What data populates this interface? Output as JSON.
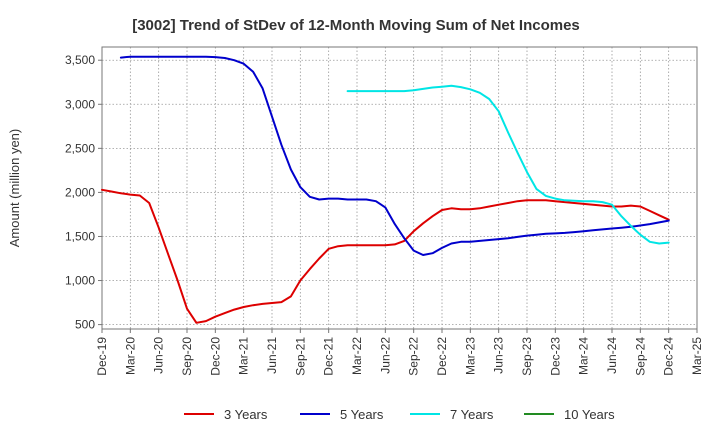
{
  "chart_data": {
    "type": "line",
    "title": "[3002]  Trend of StDev of 12-Month Moving Sum of Net Incomes",
    "xlabel": "",
    "ylabel": "Amount (million yen)",
    "ylim": [
      450,
      3650
    ],
    "yticks": [
      500,
      1000,
      1500,
      2000,
      2500,
      3000,
      3500
    ],
    "ytick_labels": [
      "500",
      "1,000",
      "1,500",
      "2,000",
      "2,500",
      "3,000",
      "3,500"
    ],
    "x_range": [
      "2019-12",
      "2025-03"
    ],
    "xticks": [
      "2019-12",
      "2020-03",
      "2020-06",
      "2020-09",
      "2020-12",
      "2021-03",
      "2021-06",
      "2021-09",
      "2021-12",
      "2022-03",
      "2022-06",
      "2022-09",
      "2022-12",
      "2023-03",
      "2023-06",
      "2023-09",
      "2023-12",
      "2024-03",
      "2024-06",
      "2024-09",
      "2024-12",
      "2025-03"
    ],
    "xtick_labels": [
      "Dec-19",
      "Mar-20",
      "Jun-20",
      "Sep-20",
      "Dec-20",
      "Mar-21",
      "Jun-21",
      "Sep-21",
      "Dec-21",
      "Mar-22",
      "Jun-22",
      "Sep-22",
      "Dec-22",
      "Mar-23",
      "Jun-23",
      "Sep-23",
      "Dec-23",
      "Mar-24",
      "Jun-24",
      "Sep-24",
      "Dec-24",
      "Mar-25"
    ],
    "grid": true,
    "legend_position": "bottom",
    "series": [
      {
        "name": "3 Years",
        "color": "#dd0000",
        "points": [
          [
            "2019-12",
            2030
          ],
          [
            "2020-01",
            2010
          ],
          [
            "2020-02",
            1990
          ],
          [
            "2020-03",
            1975
          ],
          [
            "2020-04",
            1965
          ],
          [
            "2020-05",
            1880
          ],
          [
            "2020-06",
            1600
          ],
          [
            "2020-07",
            1300
          ],
          [
            "2020-08",
            1000
          ],
          [
            "2020-09",
            680
          ],
          [
            "2020-10",
            520
          ],
          [
            "2020-11",
            540
          ],
          [
            "2020-12",
            590
          ],
          [
            "2021-01",
            630
          ],
          [
            "2021-02",
            670
          ],
          [
            "2021-03",
            700
          ],
          [
            "2021-04",
            720
          ],
          [
            "2021-05",
            735
          ],
          [
            "2021-06",
            745
          ],
          [
            "2021-07",
            755
          ],
          [
            "2021-08",
            820
          ],
          [
            "2021-09",
            1000
          ],
          [
            "2021-10",
            1130
          ],
          [
            "2021-11",
            1250
          ],
          [
            "2021-12",
            1360
          ],
          [
            "2022-01",
            1390
          ],
          [
            "2022-02",
            1400
          ],
          [
            "2022-03",
            1400
          ],
          [
            "2022-04",
            1400
          ],
          [
            "2022-05",
            1400
          ],
          [
            "2022-06",
            1400
          ],
          [
            "2022-07",
            1410
          ],
          [
            "2022-08",
            1450
          ],
          [
            "2022-09",
            1560
          ],
          [
            "2022-10",
            1650
          ],
          [
            "2022-11",
            1730
          ],
          [
            "2022-12",
            1800
          ],
          [
            "2023-01",
            1820
          ],
          [
            "2023-02",
            1810
          ],
          [
            "2023-03",
            1810
          ],
          [
            "2023-04",
            1820
          ],
          [
            "2023-05",
            1840
          ],
          [
            "2023-06",
            1860
          ],
          [
            "2023-07",
            1880
          ],
          [
            "2023-08",
            1900
          ],
          [
            "2023-09",
            1910
          ],
          [
            "2023-10",
            1910
          ],
          [
            "2023-11",
            1910
          ],
          [
            "2023-12",
            1900
          ],
          [
            "2024-01",
            1890
          ],
          [
            "2024-02",
            1880
          ],
          [
            "2024-03",
            1870
          ],
          [
            "2024-04",
            1860
          ],
          [
            "2024-05",
            1850
          ],
          [
            "2024-06",
            1840
          ],
          [
            "2024-07",
            1840
          ],
          [
            "2024-08",
            1850
          ],
          [
            "2024-09",
            1840
          ],
          [
            "2024-10",
            1790
          ],
          [
            "2024-11",
            1740
          ],
          [
            "2024-12",
            1690
          ]
        ]
      },
      {
        "name": "5 Years",
        "color": "#0000cc",
        "points": [
          [
            "2020-02",
            3530
          ],
          [
            "2020-03",
            3540
          ],
          [
            "2020-04",
            3540
          ],
          [
            "2020-05",
            3540
          ],
          [
            "2020-06",
            3540
          ],
          [
            "2020-07",
            3540
          ],
          [
            "2020-08",
            3540
          ],
          [
            "2020-09",
            3540
          ],
          [
            "2020-10",
            3540
          ],
          [
            "2020-11",
            3540
          ],
          [
            "2020-12",
            3535
          ],
          [
            "2021-01",
            3525
          ],
          [
            "2021-02",
            3500
          ],
          [
            "2021-03",
            3460
          ],
          [
            "2021-04",
            3370
          ],
          [
            "2021-05",
            3180
          ],
          [
            "2021-06",
            2860
          ],
          [
            "2021-07",
            2540
          ],
          [
            "2021-08",
            2260
          ],
          [
            "2021-09",
            2060
          ],
          [
            "2021-10",
            1950
          ],
          [
            "2021-11",
            1920
          ],
          [
            "2021-12",
            1930
          ],
          [
            "2022-01",
            1930
          ],
          [
            "2022-02",
            1920
          ],
          [
            "2022-03",
            1920
          ],
          [
            "2022-04",
            1920
          ],
          [
            "2022-05",
            1900
          ],
          [
            "2022-06",
            1830
          ],
          [
            "2022-07",
            1640
          ],
          [
            "2022-08",
            1480
          ],
          [
            "2022-09",
            1340
          ],
          [
            "2022-10",
            1290
          ],
          [
            "2022-11",
            1310
          ],
          [
            "2022-12",
            1370
          ],
          [
            "2023-01",
            1420
          ],
          [
            "2023-02",
            1440
          ],
          [
            "2023-03",
            1440
          ],
          [
            "2023-04",
            1450
          ],
          [
            "2023-05",
            1460
          ],
          [
            "2023-06",
            1470
          ],
          [
            "2023-07",
            1480
          ],
          [
            "2023-08",
            1495
          ],
          [
            "2023-09",
            1510
          ],
          [
            "2023-10",
            1520
          ],
          [
            "2023-11",
            1530
          ],
          [
            "2023-12",
            1535
          ],
          [
            "2024-01",
            1540
          ],
          [
            "2024-02",
            1550
          ],
          [
            "2024-03",
            1560
          ],
          [
            "2024-04",
            1570
          ],
          [
            "2024-05",
            1580
          ],
          [
            "2024-06",
            1590
          ],
          [
            "2024-07",
            1600
          ],
          [
            "2024-08",
            1610
          ],
          [
            "2024-09",
            1625
          ],
          [
            "2024-10",
            1640
          ],
          [
            "2024-11",
            1660
          ],
          [
            "2024-12",
            1680
          ]
        ]
      },
      {
        "name": "7 Years",
        "color": "#00e5e5",
        "points": [
          [
            "2022-02",
            3150
          ],
          [
            "2022-03",
            3150
          ],
          [
            "2022-04",
            3150
          ],
          [
            "2022-05",
            3150
          ],
          [
            "2022-06",
            3150
          ],
          [
            "2022-07",
            3150
          ],
          [
            "2022-08",
            3150
          ],
          [
            "2022-09",
            3160
          ],
          [
            "2022-10",
            3175
          ],
          [
            "2022-11",
            3190
          ],
          [
            "2022-12",
            3200
          ],
          [
            "2023-01",
            3210
          ],
          [
            "2023-02",
            3195
          ],
          [
            "2023-03",
            3170
          ],
          [
            "2023-04",
            3130
          ],
          [
            "2023-05",
            3060
          ],
          [
            "2023-06",
            2920
          ],
          [
            "2023-07",
            2680
          ],
          [
            "2023-08",
            2450
          ],
          [
            "2023-09",
            2230
          ],
          [
            "2023-10",
            2040
          ],
          [
            "2023-11",
            1960
          ],
          [
            "2023-12",
            1930
          ],
          [
            "2024-01",
            1910
          ],
          [
            "2024-02",
            1905
          ],
          [
            "2024-03",
            1900
          ],
          [
            "2024-04",
            1900
          ],
          [
            "2024-05",
            1890
          ],
          [
            "2024-06",
            1860
          ],
          [
            "2024-07",
            1730
          ],
          [
            "2024-08",
            1620
          ],
          [
            "2024-09",
            1520
          ],
          [
            "2024-10",
            1440
          ],
          [
            "2024-11",
            1420
          ],
          [
            "2024-12",
            1430
          ]
        ]
      },
      {
        "name": "10 Years",
        "color": "#228b22",
        "points": []
      }
    ]
  }
}
